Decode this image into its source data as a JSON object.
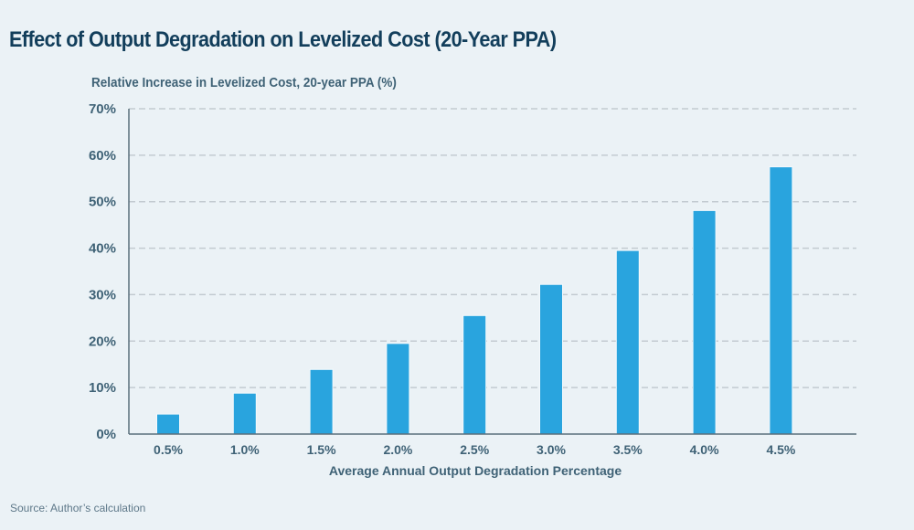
{
  "chart_data": {
    "type": "bar",
    "title": "Effect of Output Degradation on Levelized Cost (20-Year PPA)",
    "ylabel": "Relative Increase in Levelized Cost, 20-year PPA (%)",
    "xlabel": "Average Annual Output Degradation Percentage",
    "categories": [
      "0.5%",
      "1.0%",
      "1.5%",
      "2.0%",
      "2.5%",
      "3.0%",
      "3.5%",
      "4.0%",
      "4.5%"
    ],
    "values": [
      4.3,
      8.8,
      13.9,
      19.5,
      25.5,
      32.2,
      39.5,
      48.1,
      57.5
    ],
    "ylim": [
      0,
      70
    ],
    "yticks": [
      0,
      10,
      20,
      30,
      40,
      50,
      60,
      70
    ],
    "ytick_labels": [
      "0%",
      "10%",
      "20%",
      "30%",
      "40%",
      "50%",
      "60%",
      "70%"
    ],
    "grid": "horizontal-dashed",
    "bar_color": "#29a4de",
    "legend": "none"
  },
  "source": "Source: Author’s calculation"
}
